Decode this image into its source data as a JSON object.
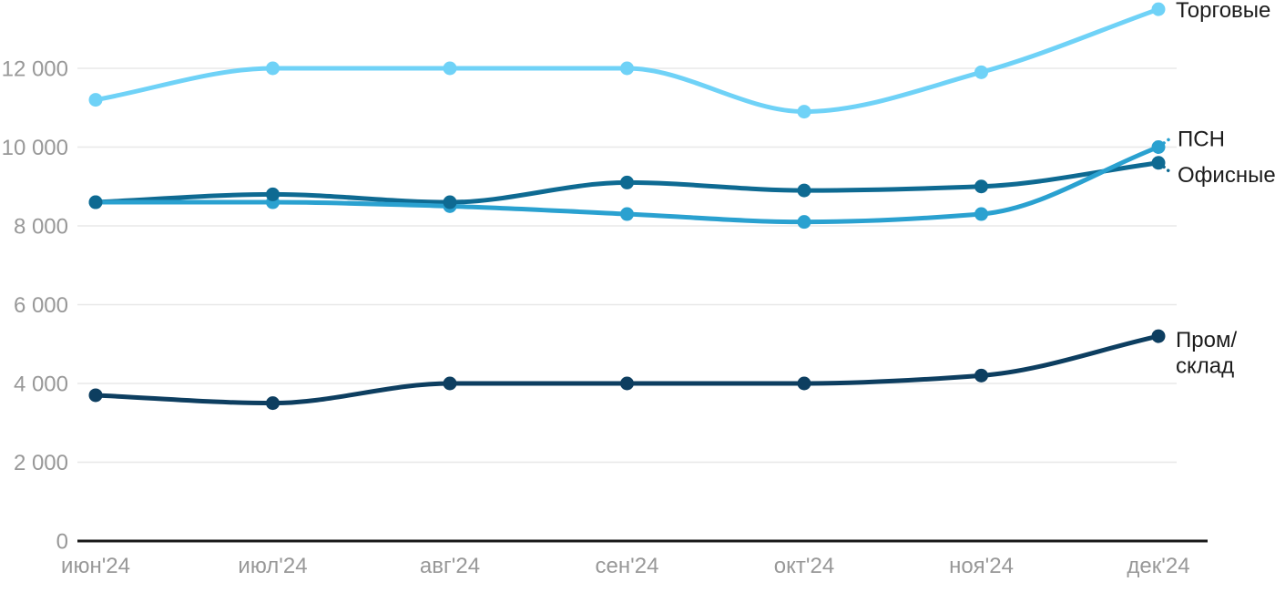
{
  "chart_data": {
    "type": "line",
    "title": "",
    "xlabel": "",
    "ylabel": "",
    "categories": [
      "июн'24",
      "июл'24",
      "авг'24",
      "сен'24",
      "окт'24",
      "ноя'24",
      "дек'24"
    ],
    "series": [
      {
        "name": "Торговые",
        "label_lines": [
          "Торговые"
        ],
        "color": "#6fd2f7",
        "values": [
          11200,
          12000,
          12000,
          12000,
          10900,
          11900,
          13500
        ]
      },
      {
        "name": "Офисные",
        "label_lines": [
          "Офисные"
        ],
        "color": "#0e6a92",
        "values": [
          8600,
          8800,
          8600,
          9100,
          8900,
          9000,
          9600
        ]
      },
      {
        "name": "ПСН",
        "label_lines": [
          "ПСН"
        ],
        "color": "#2aa1d0",
        "values": [
          8600,
          8600,
          8500,
          8300,
          8100,
          8300,
          10000
        ]
      },
      {
        "name": "Пром/склад",
        "label_lines": [
          "Пром/",
          "склад"
        ],
        "color": "#0d3e60",
        "values": [
          3700,
          3500,
          4000,
          4000,
          4000,
          4200,
          5200
        ]
      }
    ],
    "yticks": [
      {
        "value": 0,
        "label": "0"
      },
      {
        "value": 2000,
        "label": "2 000"
      },
      {
        "value": 4000,
        "label": "4 000"
      },
      {
        "value": 6000,
        "label": "6 000"
      },
      {
        "value": 8000,
        "label": "8 000"
      },
      {
        "value": 10000,
        "label": "10 000"
      },
      {
        "value": 12000,
        "label": "12 000"
      }
    ],
    "ylim": [
      0,
      13500
    ],
    "grid": true,
    "legend_position": "right-end-of-lines",
    "colors": {
      "grid": "#e8e8e8",
      "axis": "#191919",
      "tick_labels": "#989898",
      "series_labels": "#1c1c1c",
      "background": "#ffffff"
    }
  }
}
